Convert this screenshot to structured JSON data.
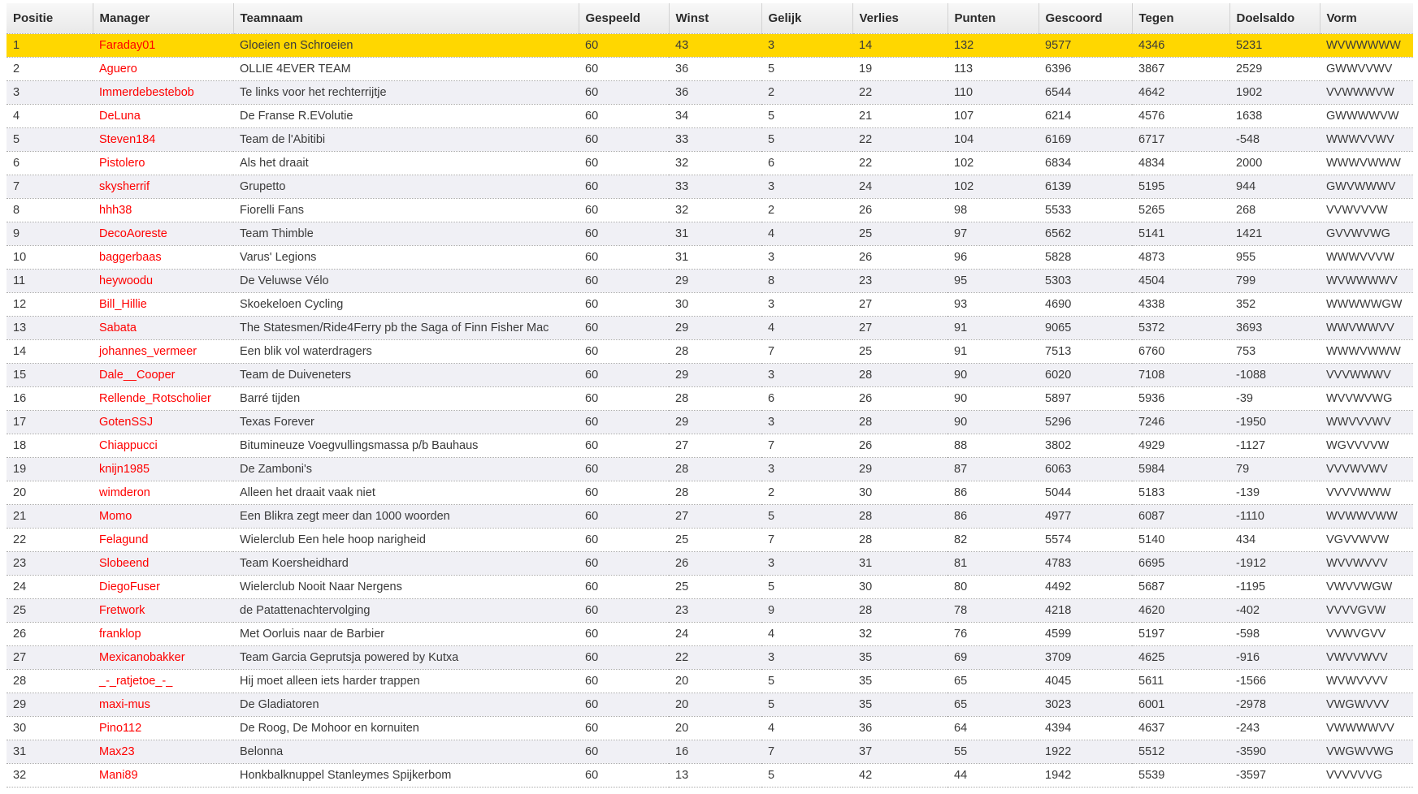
{
  "table": {
    "highlight_color": "#ffd700",
    "manager_link_color": "#ff0000",
    "shade_color": "#f0f0f5",
    "columns": [
      {
        "key": "positie",
        "label": "Positie"
      },
      {
        "key": "manager",
        "label": "Manager"
      },
      {
        "key": "teamnaam",
        "label": "Teamnaam"
      },
      {
        "key": "gespeeld",
        "label": "Gespeeld"
      },
      {
        "key": "winst",
        "label": "Winst"
      },
      {
        "key": "gelijk",
        "label": "Gelijk"
      },
      {
        "key": "verlies",
        "label": "Verlies"
      },
      {
        "key": "punten",
        "label": "Punten"
      },
      {
        "key": "gescoord",
        "label": "Gescoord"
      },
      {
        "key": "tegen",
        "label": "Tegen"
      },
      {
        "key": "doelsaldo",
        "label": "Doelsaldo"
      },
      {
        "key": "vorm",
        "label": "Vorm"
      }
    ],
    "rows": [
      {
        "highlighted": true,
        "positie": "1",
        "manager": "Faraday01",
        "teamnaam": "Gloeien en Schroeien",
        "gespeeld": "60",
        "winst": "43",
        "gelijk": "3",
        "verlies": "14",
        "punten": "132",
        "gescoord": "9577",
        "tegen": "4346",
        "doelsaldo": "5231",
        "vorm": "WVWWWWW"
      },
      {
        "highlighted": false,
        "positie": "2",
        "manager": "Aguero",
        "teamnaam": "OLLIE 4EVER TEAM",
        "gespeeld": "60",
        "winst": "36",
        "gelijk": "5",
        "verlies": "19",
        "punten": "113",
        "gescoord": "6396",
        "tegen": "3867",
        "doelsaldo": "2529",
        "vorm": "GWWVVWV"
      },
      {
        "highlighted": false,
        "positie": "3",
        "manager": "Immerdebestebob",
        "teamnaam": "Te links voor het rechterrijtje",
        "gespeeld": "60",
        "winst": "36",
        "gelijk": "2",
        "verlies": "22",
        "punten": "110",
        "gescoord": "6544",
        "tegen": "4642",
        "doelsaldo": "1902",
        "vorm": "VVWWWVW"
      },
      {
        "highlighted": false,
        "positie": "4",
        "manager": "DeLuna",
        "teamnaam": "De Franse R.EVolutie",
        "gespeeld": "60",
        "winst": "34",
        "gelijk": "5",
        "verlies": "21",
        "punten": "107",
        "gescoord": "6214",
        "tegen": "4576",
        "doelsaldo": "1638",
        "vorm": "GWWWWVW"
      },
      {
        "highlighted": false,
        "positie": "5",
        "manager": "Steven184",
        "teamnaam": "Team de l'Abitibi",
        "gespeeld": "60",
        "winst": "33",
        "gelijk": "5",
        "verlies": "22",
        "punten": "104",
        "gescoord": "6169",
        "tegen": "6717",
        "doelsaldo": "-548",
        "vorm": "WWWVVWV"
      },
      {
        "highlighted": false,
        "positie": "6",
        "manager": "Pistolero",
        "teamnaam": "Als het draait",
        "gespeeld": "60",
        "winst": "32",
        "gelijk": "6",
        "verlies": "22",
        "punten": "102",
        "gescoord": "6834",
        "tegen": "4834",
        "doelsaldo": "2000",
        "vorm": "WWWVWWW"
      },
      {
        "highlighted": false,
        "positie": "7",
        "manager": "skysherrif",
        "teamnaam": "Grupetto",
        "gespeeld": "60",
        "winst": "33",
        "gelijk": "3",
        "verlies": "24",
        "punten": "102",
        "gescoord": "6139",
        "tegen": "5195",
        "doelsaldo": "944",
        "vorm": "GWVWWWV"
      },
      {
        "highlighted": false,
        "positie": "8",
        "manager": "hhh38",
        "teamnaam": "Fiorelli Fans",
        "gespeeld": "60",
        "winst": "32",
        "gelijk": "2",
        "verlies": "26",
        "punten": "98",
        "gescoord": "5533",
        "tegen": "5265",
        "doelsaldo": "268",
        "vorm": "VVWVVVW"
      },
      {
        "highlighted": false,
        "positie": "9",
        "manager": "DecoAoreste",
        "teamnaam": "Team Thimble",
        "gespeeld": "60",
        "winst": "31",
        "gelijk": "4",
        "verlies": "25",
        "punten": "97",
        "gescoord": "6562",
        "tegen": "5141",
        "doelsaldo": "1421",
        "vorm": "GVVWVWG"
      },
      {
        "highlighted": false,
        "positie": "10",
        "manager": "baggerbaas",
        "teamnaam": "Varus' Legions",
        "gespeeld": "60",
        "winst": "31",
        "gelijk": "3",
        "verlies": "26",
        "punten": "96",
        "gescoord": "5828",
        "tegen": "4873",
        "doelsaldo": "955",
        "vorm": "WWWVVVW"
      },
      {
        "highlighted": false,
        "positie": "11",
        "manager": "heywoodu",
        "teamnaam": "De Veluwse Vélo",
        "gespeeld": "60",
        "winst": "29",
        "gelijk": "8",
        "verlies": "23",
        "punten": "95",
        "gescoord": "5303",
        "tegen": "4504",
        "doelsaldo": "799",
        "vorm": "WVWWWWV"
      },
      {
        "highlighted": false,
        "positie": "12",
        "manager": "Bill_Hillie",
        "teamnaam": "Skoekeloen Cycling",
        "gespeeld": "60",
        "winst": "30",
        "gelijk": "3",
        "verlies": "27",
        "punten": "93",
        "gescoord": "4690",
        "tegen": "4338",
        "doelsaldo": "352",
        "vorm": "WWWWWGW"
      },
      {
        "highlighted": false,
        "positie": "13",
        "manager": "Sabata",
        "teamnaam": "The Statesmen/Ride4Ferry pb the Saga of Finn Fisher Mac",
        "gespeeld": "60",
        "winst": "29",
        "gelijk": "4",
        "verlies": "27",
        "punten": "91",
        "gescoord": "9065",
        "tegen": "5372",
        "doelsaldo": "3693",
        "vorm": "WWVWWVV"
      },
      {
        "highlighted": false,
        "positie": "14",
        "manager": "johannes_vermeer",
        "teamnaam": "Een blik vol waterdragers",
        "gespeeld": "60",
        "winst": "28",
        "gelijk": "7",
        "verlies": "25",
        "punten": "91",
        "gescoord": "7513",
        "tegen": "6760",
        "doelsaldo": "753",
        "vorm": "WWWVWWW"
      },
      {
        "highlighted": false,
        "positie": "15",
        "manager": "Dale__Cooper",
        "teamnaam": "Team de Duiveneters",
        "gespeeld": "60",
        "winst": "29",
        "gelijk": "3",
        "verlies": "28",
        "punten": "90",
        "gescoord": "6020",
        "tegen": "7108",
        "doelsaldo": "-1088",
        "vorm": "VVVWWWV"
      },
      {
        "highlighted": false,
        "positie": "16",
        "manager": "Rellende_Rotscholier",
        "teamnaam": "Barré tijden",
        "gespeeld": "60",
        "winst": "28",
        "gelijk": "6",
        "verlies": "26",
        "punten": "90",
        "gescoord": "5897",
        "tegen": "5936",
        "doelsaldo": "-39",
        "vorm": "WVVWVWG"
      },
      {
        "highlighted": false,
        "positie": "17",
        "manager": "GotenSSJ",
        "teamnaam": "Texas Forever",
        "gespeeld": "60",
        "winst": "29",
        "gelijk": "3",
        "verlies": "28",
        "punten": "90",
        "gescoord": "5296",
        "tegen": "7246",
        "doelsaldo": "-1950",
        "vorm": "WWVVVWV"
      },
      {
        "highlighted": false,
        "positie": "18",
        "manager": "Chiappucci",
        "teamnaam": "Bitumineuze Voegvullingsmassa p/b Bauhaus",
        "gespeeld": "60",
        "winst": "27",
        "gelijk": "7",
        "verlies": "26",
        "punten": "88",
        "gescoord": "3802",
        "tegen": "4929",
        "doelsaldo": "-1127",
        "vorm": "WGVVVVW"
      },
      {
        "highlighted": false,
        "positie": "19",
        "manager": "knijn1985",
        "teamnaam": "De Zamboni's",
        "gespeeld": "60",
        "winst": "28",
        "gelijk": "3",
        "verlies": "29",
        "punten": "87",
        "gescoord": "6063",
        "tegen": "5984",
        "doelsaldo": "79",
        "vorm": "VVVWVWV"
      },
      {
        "highlighted": false,
        "positie": "20",
        "manager": "wimderon",
        "teamnaam": "Alleen het draait vaak niet",
        "gespeeld": "60",
        "winst": "28",
        "gelijk": "2",
        "verlies": "30",
        "punten": "86",
        "gescoord": "5044",
        "tegen": "5183",
        "doelsaldo": "-139",
        "vorm": "VVVVWWW"
      },
      {
        "highlighted": false,
        "positie": "21",
        "manager": "Momo",
        "teamnaam": "Een Blikra zegt meer dan 1000 woorden",
        "gespeeld": "60",
        "winst": "27",
        "gelijk": "5",
        "verlies": "28",
        "punten": "86",
        "gescoord": "4977",
        "tegen": "6087",
        "doelsaldo": "-1110",
        "vorm": "WVWWVWW"
      },
      {
        "highlighted": false,
        "positie": "22",
        "manager": "Felagund",
        "teamnaam": "Wielerclub Een hele hoop narigheid",
        "gespeeld": "60",
        "winst": "25",
        "gelijk": "7",
        "verlies": "28",
        "punten": "82",
        "gescoord": "5574",
        "tegen": "5140",
        "doelsaldo": "434",
        "vorm": "VGVVWVW"
      },
      {
        "highlighted": false,
        "positie": "23",
        "manager": "Slobeend",
        "teamnaam": "Team Koersheidhard",
        "gespeeld": "60",
        "winst": "26",
        "gelijk": "3",
        "verlies": "31",
        "punten": "81",
        "gescoord": "4783",
        "tegen": "6695",
        "doelsaldo": "-1912",
        "vorm": "WVVWVVV"
      },
      {
        "highlighted": false,
        "positie": "24",
        "manager": "DiegoFuser",
        "teamnaam": "Wielerclub Nooit Naar Nergens",
        "gespeeld": "60",
        "winst": "25",
        "gelijk": "5",
        "verlies": "30",
        "punten": "80",
        "gescoord": "4492",
        "tegen": "5687",
        "doelsaldo": "-1195",
        "vorm": "VWVVWGW"
      },
      {
        "highlighted": false,
        "positie": "25",
        "manager": "Fretwork",
        "teamnaam": "de Patattenachtervolging",
        "gespeeld": "60",
        "winst": "23",
        "gelijk": "9",
        "verlies": "28",
        "punten": "78",
        "gescoord": "4218",
        "tegen": "4620",
        "doelsaldo": "-402",
        "vorm": "VVVVGVW"
      },
      {
        "highlighted": false,
        "positie": "26",
        "manager": "franklop",
        "teamnaam": "Met Oorluis naar de Barbier",
        "gespeeld": "60",
        "winst": "24",
        "gelijk": "4",
        "verlies": "32",
        "punten": "76",
        "gescoord": "4599",
        "tegen": "5197",
        "doelsaldo": "-598",
        "vorm": "VVWVGVV"
      },
      {
        "highlighted": false,
        "positie": "27",
        "manager": "Mexicanobakker",
        "teamnaam": "Team Garcia Geprutsja powered by Kutxa",
        "gespeeld": "60",
        "winst": "22",
        "gelijk": "3",
        "verlies": "35",
        "punten": "69",
        "gescoord": "3709",
        "tegen": "4625",
        "doelsaldo": "-916",
        "vorm": "VWVVWVV"
      },
      {
        "highlighted": false,
        "positie": "28",
        "manager": "_-_ratjetoe_-_",
        "teamnaam": "Hij moet alleen iets harder trappen",
        "gespeeld": "60",
        "winst": "20",
        "gelijk": "5",
        "verlies": "35",
        "punten": "65",
        "gescoord": "4045",
        "tegen": "5611",
        "doelsaldo": "-1566",
        "vorm": "WVWVVVV"
      },
      {
        "highlighted": false,
        "positie": "29",
        "manager": "maxi-mus",
        "teamnaam": "De Gladiatoren",
        "gespeeld": "60",
        "winst": "20",
        "gelijk": "5",
        "verlies": "35",
        "punten": "65",
        "gescoord": "3023",
        "tegen": "6001",
        "doelsaldo": "-2978",
        "vorm": "VWGWVVV"
      },
      {
        "highlighted": false,
        "positie": "30",
        "manager": "Pino112",
        "teamnaam": "De Roog, De Mohoor en kornuiten",
        "gespeeld": "60",
        "winst": "20",
        "gelijk": "4",
        "verlies": "36",
        "punten": "64",
        "gescoord": "4394",
        "tegen": "4637",
        "doelsaldo": "-243",
        "vorm": "VWWWWVV"
      },
      {
        "highlighted": false,
        "positie": "31",
        "manager": "Max23",
        "teamnaam": "Belonna",
        "gespeeld": "60",
        "winst": "16",
        "gelijk": "7",
        "verlies": "37",
        "punten": "55",
        "gescoord": "1922",
        "tegen": "5512",
        "doelsaldo": "-3590",
        "vorm": "VWGWVWG"
      },
      {
        "highlighted": false,
        "positie": "32",
        "manager": "Mani89",
        "teamnaam": "Honkbalknuppel Stanleymes Spijkerbom",
        "gespeeld": "60",
        "winst": "13",
        "gelijk": "5",
        "verlies": "42",
        "punten": "44",
        "gescoord": "1942",
        "tegen": "5539",
        "doelsaldo": "-3597",
        "vorm": "VVVVVVG"
      }
    ]
  }
}
